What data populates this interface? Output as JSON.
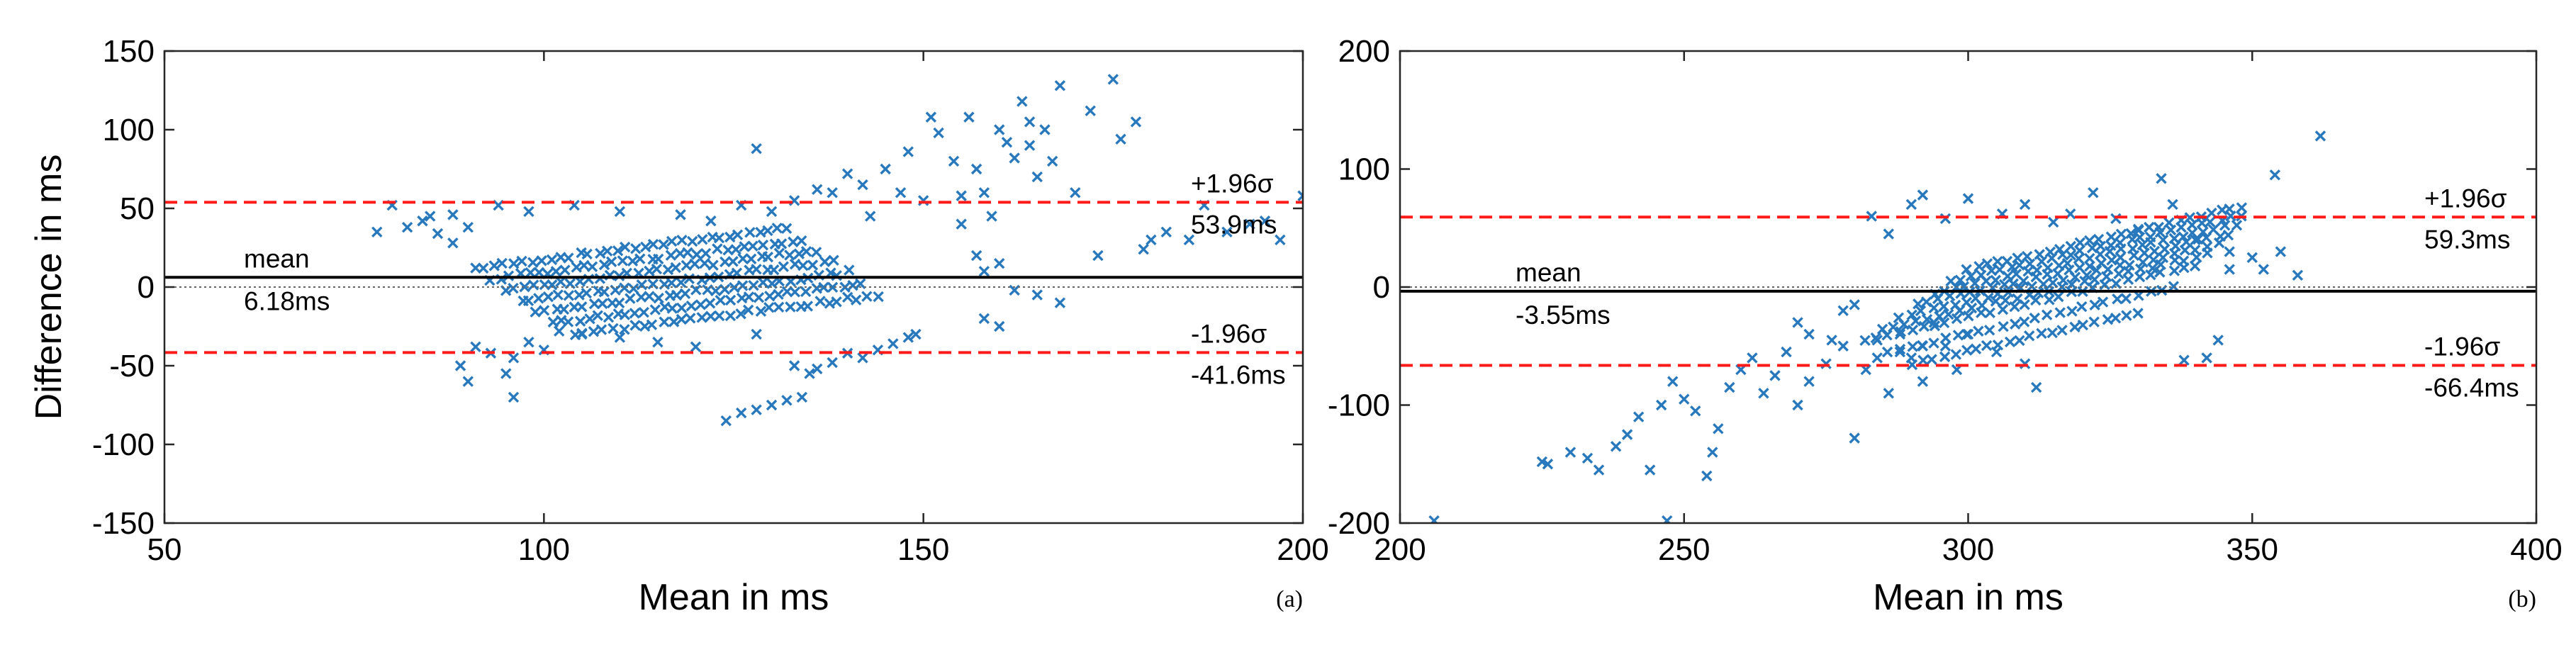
{
  "colors": {
    "points": "#2878bd",
    "limits": "#ff1a1a",
    "mean_line": "#000000",
    "zero_line": "#666666",
    "frame": "#262626"
  },
  "chart_data": [
    {
      "type": "scatter",
      "panel_label": "(a)",
      "xlabel": "Mean in ms",
      "ylabel": "Difference in ms",
      "xlim": [
        50,
        200
      ],
      "ylim": [
        -150,
        150
      ],
      "xticks": [
        50,
        100,
        150,
        200
      ],
      "yticks": [
        -150,
        -100,
        -50,
        0,
        50,
        100,
        150
      ],
      "grid": false,
      "marker": "x",
      "mean": 6.18,
      "upper_limit": 53.9,
      "lower_limit": -41.6,
      "annotations": {
        "mean_label": "mean",
        "mean_value": "6.18ms",
        "upper_label": "+1.96σ",
        "upper_value": "53.9ms",
        "lower_label": "-1.96σ",
        "lower_value": "-41.6ms"
      },
      "points": [
        [
          78,
          35
        ],
        [
          80,
          52
        ],
        [
          82,
          38
        ],
        [
          84,
          42
        ],
        [
          85,
          45
        ],
        [
          86,
          34
        ],
        [
          88,
          28
        ],
        [
          89,
          -50
        ],
        [
          90,
          -60
        ],
        [
          91,
          -38
        ],
        [
          93,
          -42
        ],
        [
          95,
          -55
        ],
        [
          96,
          -70
        ],
        [
          96,
          -45
        ],
        [
          98,
          -35
        ],
        [
          100,
          -40
        ],
        [
          102,
          -28
        ],
        [
          88,
          46
        ],
        [
          90,
          38
        ],
        [
          94,
          52
        ],
        [
          98,
          48
        ],
        [
          104,
          52
        ],
        [
          110,
          48
        ],
        [
          118,
          46
        ],
        [
          122,
          42
        ],
        [
          126,
          52
        ],
        [
          130,
          48
        ],
        [
          133,
          55
        ],
        [
          136,
          62
        ],
        [
          138,
          60
        ],
        [
          140,
          72
        ],
        [
          142,
          65
        ],
        [
          143,
          45
        ],
        [
          145,
          75
        ],
        [
          147,
          60
        ],
        [
          148,
          86
        ],
        [
          150,
          55
        ],
        [
          151,
          108
        ],
        [
          152,
          98
        ],
        [
          154,
          80
        ],
        [
          155,
          58
        ],
        [
          156,
          108
        ],
        [
          157,
          75
        ],
        [
          158,
          60
        ],
        [
          159,
          45
        ],
        [
          160,
          100
        ],
        [
          161,
          92
        ],
        [
          162,
          82
        ],
        [
          163,
          118
        ],
        [
          164,
          105
        ],
        [
          164,
          90
        ],
        [
          165,
          70
        ],
        [
          166,
          100
        ],
        [
          167,
          80
        ],
        [
          168,
          128
        ],
        [
          170,
          60
        ],
        [
          172,
          112
        ],
        [
          173,
          20
        ],
        [
          175,
          132
        ],
        [
          176,
          94
        ],
        [
          178,
          105
        ],
        [
          179,
          24
        ],
        [
          180,
          30
        ],
        [
          182,
          35
        ],
        [
          185,
          30
        ],
        [
          187,
          52
        ],
        [
          190,
          35
        ],
        [
          193,
          40
        ],
        [
          195,
          42
        ],
        [
          197,
          30
        ],
        [
          200,
          58
        ],
        [
          155,
          40
        ],
        [
          157,
          20
        ],
        [
          158,
          10
        ],
        [
          160,
          15
        ],
        [
          162,
          -2
        ],
        [
          165,
          -5
        ],
        [
          168,
          -10
        ],
        [
          128,
          88
        ],
        [
          124,
          -85
        ],
        [
          126,
          -80
        ],
        [
          128,
          -78
        ],
        [
          130,
          -75
        ],
        [
          132,
          -72
        ],
        [
          134,
          -70
        ],
        [
          140,
          -42
        ],
        [
          142,
          -45
        ],
        [
          144,
          -40
        ],
        [
          146,
          -36
        ],
        [
          148,
          -32
        ],
        [
          149,
          -30
        ],
        [
          138,
          -48
        ],
        [
          136,
          -52
        ],
        [
          105,
          -30
        ],
        [
          110,
          -32
        ],
        [
          115,
          -35
        ],
        [
          120,
          -38
        ],
        [
          128,
          -30
        ],
        [
          133,
          -50
        ],
        [
          135,
          -55
        ],
        [
          158,
          -20
        ],
        [
          160,
          -25
        ]
      ],
      "stripes": [
        {
          "x0": 91,
          "x1": 132,
          "y0": 12,
          "slope": 0.62,
          "count": 34
        },
        {
          "x0": 93,
          "x1": 134,
          "y0": 5,
          "slope": 0.62,
          "count": 34
        },
        {
          "x0": 95,
          "x1": 136,
          "y0": -2,
          "slope": 0.62,
          "count": 34
        },
        {
          "x0": 97,
          "x1": 138,
          "y0": -9,
          "slope": 0.62,
          "count": 34
        },
        {
          "x0": 99,
          "x1": 140,
          "y0": -16,
          "slope": 0.62,
          "count": 34
        },
        {
          "x0": 101,
          "x1": 142,
          "y0": -23,
          "slope": 0.62,
          "count": 34
        },
        {
          "x0": 104,
          "x1": 144,
          "y0": -30,
          "slope": 0.62,
          "count": 32
        }
      ]
    },
    {
      "type": "scatter",
      "panel_label": "(b)",
      "xlabel": "Mean in ms",
      "ylabel": "",
      "xlim": [
        200,
        400
      ],
      "ylim": [
        -200,
        200
      ],
      "xticks": [
        200,
        250,
        300,
        350,
        400
      ],
      "yticks": [
        -200,
        -100,
        0,
        100,
        200
      ],
      "grid": false,
      "marker": "x",
      "mean": -3.55,
      "upper_limit": 59.3,
      "lower_limit": -66.4,
      "annotations": {
        "mean_label": "mean",
        "mean_value": "-3.55ms",
        "upper_label": "+1.96σ",
        "upper_value": "59.3ms",
        "lower_label": "-1.96σ",
        "lower_value": "-66.4ms"
      },
      "points": [
        [
          206,
          -198
        ],
        [
          226,
          -150
        ],
        [
          230,
          -140
        ],
        [
          233,
          -145
        ],
        [
          235,
          -155
        ],
        [
          238,
          -135
        ],
        [
          240,
          -125
        ],
        [
          242,
          -110
        ],
        [
          244,
          -155
        ],
        [
          246,
          -100
        ],
        [
          248,
          -80
        ],
        [
          250,
          -95
        ],
        [
          252,
          -105
        ],
        [
          254,
          -160
        ],
        [
          256,
          -120
        ],
        [
          258,
          -85
        ],
        [
          260,
          -70
        ],
        [
          262,
          -60
        ],
        [
          264,
          -90
        ],
        [
          266,
          -75
        ],
        [
          268,
          -55
        ],
        [
          270,
          -100
        ],
        [
          272,
          -80
        ],
        [
          275,
          -65
        ],
        [
          278,
          -50
        ],
        [
          280,
          -128
        ],
        [
          282,
          -70
        ],
        [
          284,
          -45
        ],
        [
          286,
          -90
        ],
        [
          288,
          -40
        ],
        [
          290,
          -60
        ],
        [
          292,
          -80
        ],
        [
          294,
          -30
        ],
        [
          296,
          -50
        ],
        [
          247,
          -198
        ],
        [
          255,
          -140
        ],
        [
          225,
          -148
        ],
        [
          272,
          -40
        ],
        [
          270,
          -30
        ],
        [
          276,
          -45
        ],
        [
          278,
          -20
        ],
        [
          280,
          -15
        ],
        [
          283,
          60
        ],
        [
          286,
          45
        ],
        [
          290,
          70
        ],
        [
          292,
          78
        ],
        [
          296,
          58
        ],
        [
          300,
          75
        ],
        [
          306,
          62
        ],
        [
          310,
          70
        ],
        [
          315,
          55
        ],
        [
          318,
          62
        ],
        [
          322,
          80
        ],
        [
          326,
          58
        ],
        [
          330,
          48
        ],
        [
          334,
          92
        ],
        [
          336,
          70
        ],
        [
          340,
          40
        ],
        [
          342,
          -60
        ],
        [
          344,
          -45
        ],
        [
          346,
          30
        ],
        [
          350,
          25
        ],
        [
          352,
          15
        ],
        [
          354,
          95
        ],
        [
          355,
          30
        ],
        [
          358,
          10
        ],
        [
          362,
          128
        ],
        [
          346,
          15
        ],
        [
          338,
          -62
        ],
        [
          300,
          -40
        ],
        [
          305,
          -55
        ],
        [
          310,
          -65
        ],
        [
          312,
          -85
        ],
        [
          298,
          -70
        ],
        [
          292,
          -50
        ],
        [
          288,
          -55
        ],
        [
          284,
          -60
        ]
      ],
      "stripes": [
        {
          "x0": 282,
          "x1": 340,
          "y0": -45,
          "slope": 1.1,
          "count": 30
        },
        {
          "x0": 285,
          "x1": 342,
          "y0": -35,
          "slope": 1.1,
          "count": 30
        },
        {
          "x0": 288,
          "x1": 344,
          "y0": -25,
          "slope": 1.1,
          "count": 30
        },
        {
          "x0": 291,
          "x1": 346,
          "y0": -15,
          "slope": 1.1,
          "count": 30
        },
        {
          "x0": 294,
          "x1": 347,
          "y0": -5,
          "slope": 1.1,
          "count": 30
        },
        {
          "x0": 297,
          "x1": 348,
          "y0": 5,
          "slope": 1.1,
          "count": 30
        },
        {
          "x0": 300,
          "x1": 348,
          "y0": 15,
          "slope": 1.1,
          "count": 28
        },
        {
          "x0": 286,
          "x1": 336,
          "y0": -55,
          "slope": 1.1,
          "count": 26
        },
        {
          "x0": 290,
          "x1": 330,
          "y0": -65,
          "slope": 1.1,
          "count": 22
        }
      ]
    }
  ]
}
